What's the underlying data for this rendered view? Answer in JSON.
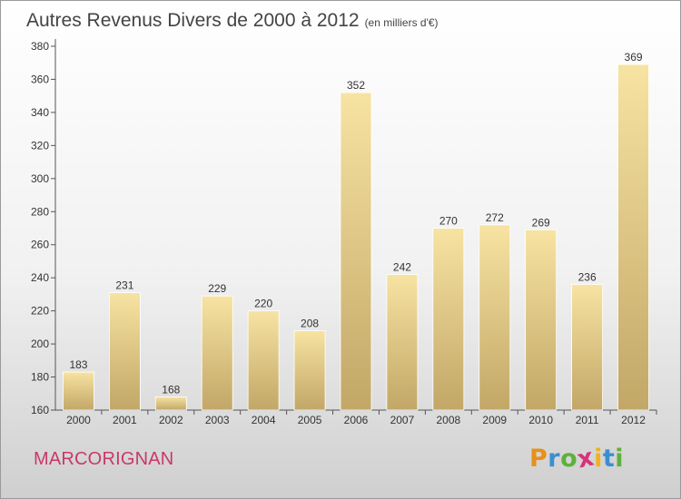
{
  "chart_data": {
    "type": "bar",
    "title": "Autres Revenus Divers de 2000 à 2012",
    "unit_label": "(en milliers d'€)",
    "categories": [
      "2000",
      "2001",
      "2002",
      "2003",
      "2004",
      "2005",
      "2006",
      "2007",
      "2008",
      "2009",
      "2010",
      "2011",
      "2012"
    ],
    "values": [
      183,
      231,
      168,
      229,
      220,
      208,
      352,
      242,
      270,
      272,
      269,
      236,
      369
    ],
    "ylim": [
      160,
      380
    ],
    "yticks": [
      160,
      180,
      200,
      220,
      240,
      260,
      280,
      300,
      320,
      340,
      360,
      380
    ],
    "grid": false,
    "bar_color_top": "#f7e3a2",
    "bar_color_bottom": "#c2a767"
  },
  "location": "MARCORIGNAN",
  "location_color": "#c8386b",
  "logo": {
    "letters": [
      "P",
      "r",
      "o",
      "x",
      "i",
      "t",
      "i"
    ],
    "colors": [
      "#e8901b",
      "#3a8fd0",
      "#5db13c",
      "#d6327a",
      "#f2b21a",
      "#3a8fd0",
      "#5db13c"
    ]
  }
}
